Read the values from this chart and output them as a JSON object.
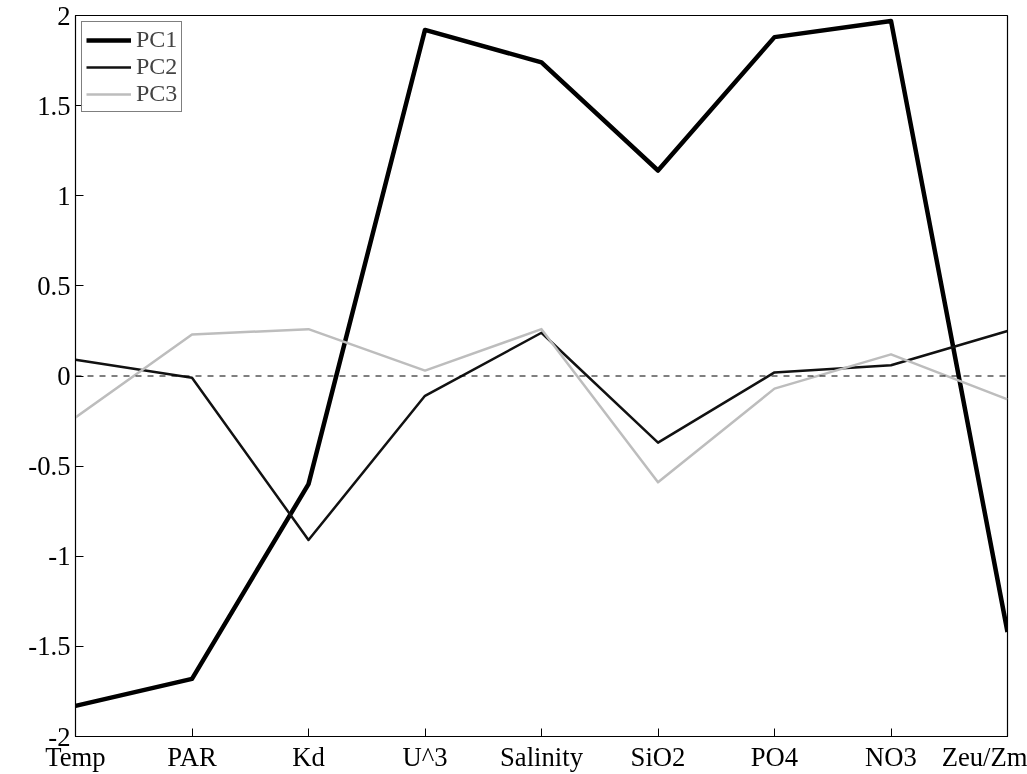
{
  "chart_data": {
    "type": "line",
    "categories": [
      "Temp",
      "PAR",
      "Kd",
      "U^3",
      "Salinity",
      "SiO2",
      "PO4",
      "NO3",
      "Zeu/Zm"
    ],
    "series": [
      {
        "name": "PC1",
        "color": "#000000",
        "values": [
          -1.83,
          -1.68,
          -0.6,
          1.92,
          1.74,
          1.14,
          1.88,
          1.97,
          -1.42
        ]
      },
      {
        "name": "PC2",
        "color": "#111111",
        "values": [
          0.09,
          -0.01,
          -0.91,
          -0.11,
          0.24,
          -0.37,
          0.02,
          0.06,
          0.25
        ]
      },
      {
        "name": "PC3",
        "color": "#bdbdbd",
        "values": [
          -0.23,
          0.23,
          0.26,
          0.03,
          0.26,
          -0.59,
          -0.07,
          0.12,
          -0.13
        ]
      }
    ],
    "ylim": [
      -2,
      2
    ],
    "yticks": [
      -2,
      -1.5,
      -1,
      -0.5,
      0,
      0.5,
      1,
      1.5,
      2
    ],
    "ref_lines": [
      {
        "axis": "y",
        "value": 0,
        "color": "#000000",
        "line_style": "dashed"
      }
    ],
    "grid": false,
    "legend": "top left",
    "marker": "none",
    "line_style": "solid"
  }
}
